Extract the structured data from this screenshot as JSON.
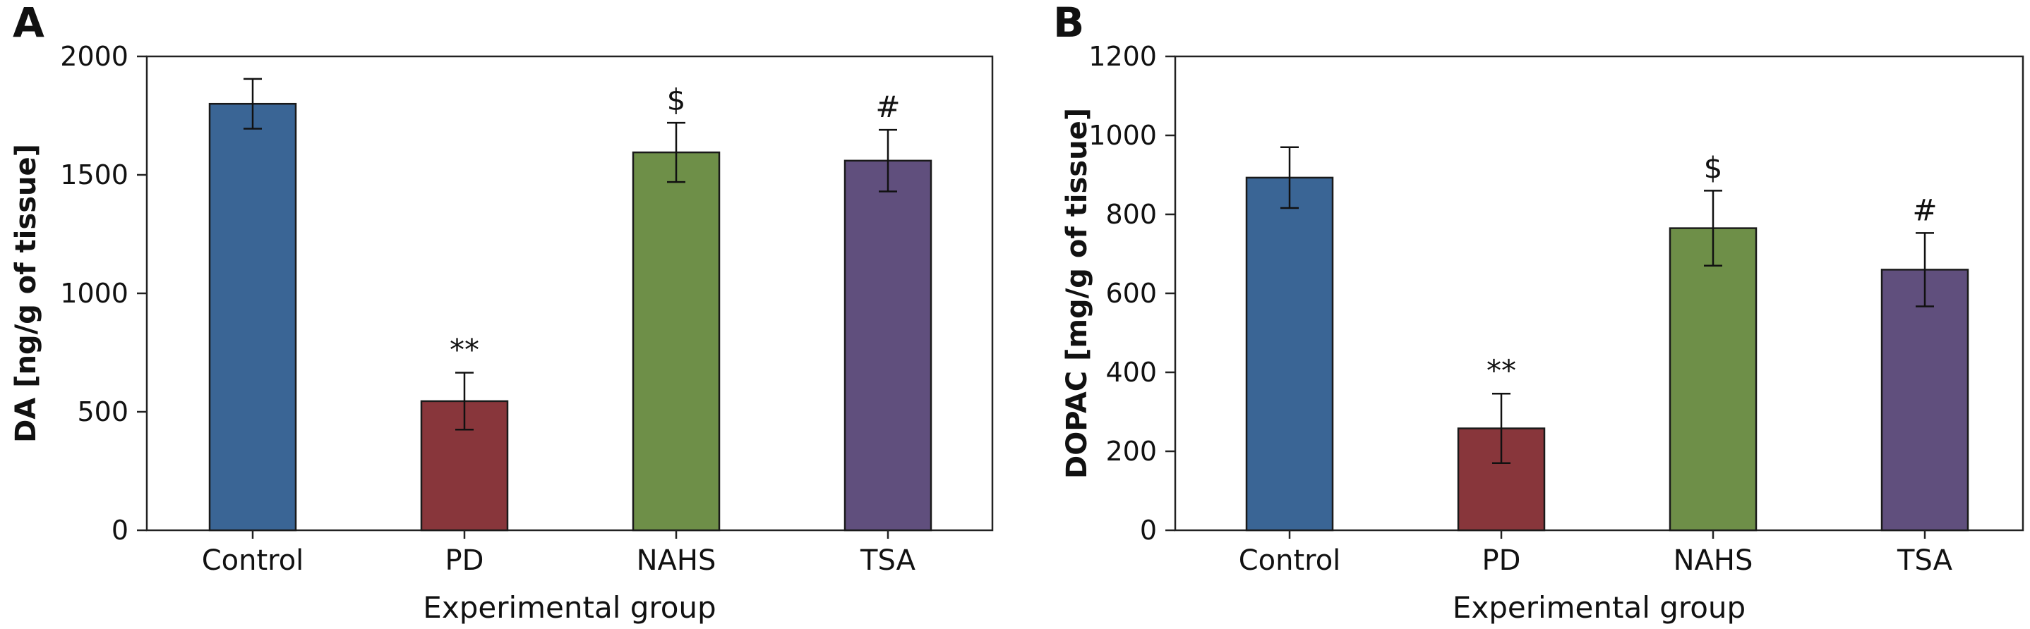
{
  "chart_data": [
    {
      "type": "bar",
      "panel_label": "A",
      "xlabel": "Experimental group",
      "ylabel": "DA [ng/g of tissue]",
      "categories": [
        "Control",
        "PD",
        "NAHS",
        "TSA"
      ],
      "values": [
        1800,
        545,
        1595,
        1560
      ],
      "error": [
        105,
        120,
        125,
        130
      ],
      "annotations": [
        "",
        "**",
        "$",
        "#"
      ],
      "colors": [
        "#3a6595",
        "#88363b",
        "#6e8f48",
        "#604f7d"
      ],
      "ylim": [
        0,
        2000
      ],
      "yticks": [
        0,
        500,
        1000,
        1500,
        2000
      ],
      "grid": false
    },
    {
      "type": "bar",
      "panel_label": "B",
      "xlabel": "Experimental group",
      "ylabel": "DOPAC [mg/g of tissue]",
      "categories": [
        "Control",
        "PD",
        "NAHS",
        "TSA"
      ],
      "values": [
        893,
        258,
        765,
        660
      ],
      "error": [
        77,
        88,
        95,
        93
      ],
      "annotations": [
        "",
        "**",
        "$",
        "#"
      ],
      "colors": [
        "#3a6595",
        "#88363b",
        "#6e8f48",
        "#604f7d"
      ],
      "ylim": [
        0,
        1200
      ],
      "yticks": [
        0,
        200,
        400,
        600,
        800,
        1000,
        1200
      ],
      "grid": false
    }
  ]
}
